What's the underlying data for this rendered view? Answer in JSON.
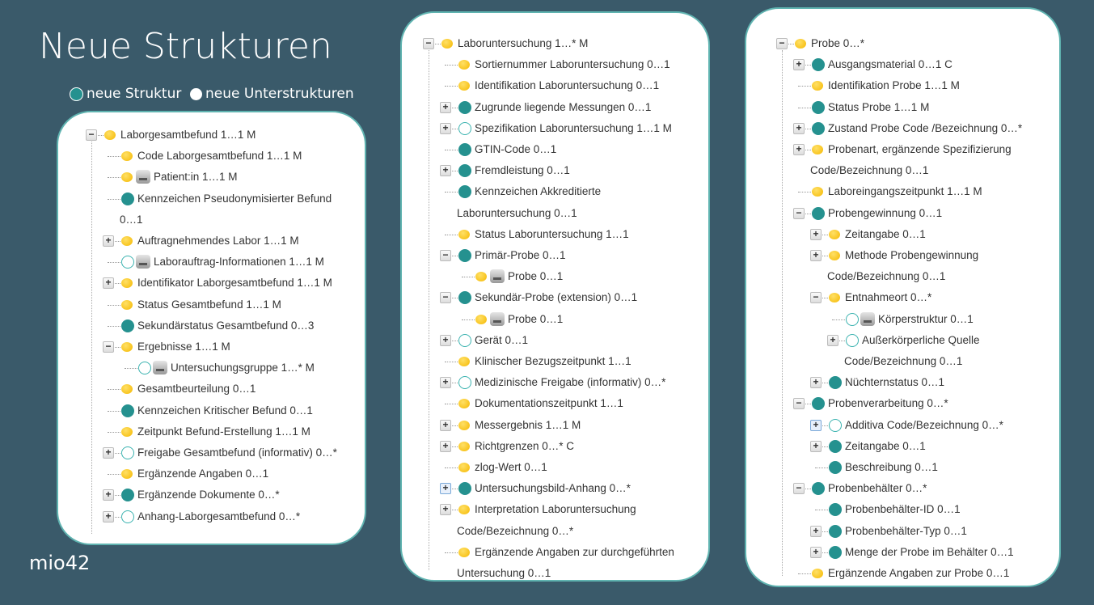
{
  "title": "Neue Strukturen",
  "legend": {
    "new_structure": "neue Struktur",
    "new_substructures": "neue Unterstrukturen"
  },
  "colors": {
    "teal": "#25918f",
    "yellow": "#f5b800",
    "background": "#3a5a6a"
  },
  "logo": "mio42",
  "panels": [
    {
      "name": "laborgesamtbefund-tree",
      "rows": [
        {
          "l": 0,
          "e": "minus",
          "i": "y",
          "t": "Laborgesamtbefund 1…1 M"
        },
        {
          "l": 1,
          "i": "y",
          "t": "Code Laborgesamtbefund 1…1 M"
        },
        {
          "l": 1,
          "i": "y",
          "db": true,
          "t": "Patient:in 1…1 M"
        },
        {
          "l": 1,
          "i": "t",
          "t": "Kennzeichen Pseudonymisierter Befund",
          "t2": "0…1"
        },
        {
          "l": 1,
          "e": "plus",
          "i": "y",
          "t": "Auftragnehmendes Labor 1…1 M"
        },
        {
          "l": 1,
          "i": "h",
          "db": true,
          "t": "Laborauftrag-Informationen 1…1 M"
        },
        {
          "l": 1,
          "e": "plus",
          "i": "y",
          "t": "Identifikator Laborgesamtbefund 1…1 M"
        },
        {
          "l": 1,
          "i": "y",
          "t": "Status Gesamtbefund 1…1 M"
        },
        {
          "l": 1,
          "i": "t",
          "t": "Sekundärstatus Gesamtbefund 0…3"
        },
        {
          "l": 1,
          "e": "minus",
          "i": "y",
          "t": "Ergebnisse 1…1 M"
        },
        {
          "l": 2,
          "i": "h",
          "db": true,
          "t": "Untersuchungsgruppe 1…* M"
        },
        {
          "l": 1,
          "i": "y",
          "t": "Gesamtbeurteilung 0…1"
        },
        {
          "l": 1,
          "i": "t",
          "t": "Kennzeichen Kritischer Befund 0…1"
        },
        {
          "l": 1,
          "i": "y",
          "t": "Zeitpunkt Befund-Erstellung 1…1 M"
        },
        {
          "l": 1,
          "e": "plus",
          "i": "h",
          "t": "Freigabe Gesamtbefund (informativ) 0…*"
        },
        {
          "l": 1,
          "i": "y",
          "t": "Ergänzende Angaben 0…1"
        },
        {
          "l": 1,
          "e": "plus",
          "i": "t",
          "t": "Ergänzende Dokumente 0…*"
        },
        {
          "l": 1,
          "e": "plus",
          "i": "h",
          "t": "Anhang-Laborgesamtbefund 0…*"
        }
      ]
    },
    {
      "name": "laboruntersuchung-tree",
      "rows": [
        {
          "l": 0,
          "e": "minus",
          "i": "y",
          "t": "Laboruntersuchung 1…* M"
        },
        {
          "l": 1,
          "i": "y",
          "t": "Sortiernummer Laboruntersuchung 0…1"
        },
        {
          "l": 1,
          "i": "y",
          "t": "Identifikation Laboruntersuchung 0…1"
        },
        {
          "l": 1,
          "e": "plus",
          "i": "t",
          "t": "Zugrunde liegende Messungen 0…1"
        },
        {
          "l": 1,
          "e": "plus",
          "i": "h",
          "t": "Spezifikation Laboruntersuchung 1…1 M"
        },
        {
          "l": 1,
          "i": "t",
          "t": "GTIN-Code 0…1"
        },
        {
          "l": 1,
          "e": "plus",
          "i": "t",
          "t": "Fremdleistung 0…1"
        },
        {
          "l": 1,
          "i": "t",
          "t": "Kennzeichen Akkreditierte",
          "t2": "Laboruntersuchung 0…1"
        },
        {
          "l": 1,
          "i": "y",
          "t": "Status Laboruntersuchung 1…1"
        },
        {
          "l": 1,
          "e": "minus",
          "i": "t",
          "t": "Primär-Probe 0…1"
        },
        {
          "l": 2,
          "i": "y",
          "db": true,
          "t": "Probe 0…1"
        },
        {
          "l": 1,
          "e": "minus",
          "i": "t",
          "t": "Sekundär-Probe (extension) 0…1"
        },
        {
          "l": 2,
          "i": "y",
          "db": true,
          "t": "Probe 0…1"
        },
        {
          "l": 1,
          "e": "plus",
          "i": "h",
          "t": "Gerät 0…1"
        },
        {
          "l": 1,
          "i": "y",
          "t": "Klinischer Bezugszeitpunkt 1…1"
        },
        {
          "l": 1,
          "e": "plus",
          "i": "h",
          "t": "Medizinische Freigabe (informativ) 0…*"
        },
        {
          "l": 1,
          "i": "y",
          "t": "Dokumentationszeitpunkt 1…1"
        },
        {
          "l": 1,
          "e": "plus",
          "i": "y",
          "t": "Messergebnis 1…1 M"
        },
        {
          "l": 1,
          "e": "plus",
          "i": "y",
          "t": "Richtgrenzen 0…* C"
        },
        {
          "l": 1,
          "i": "y",
          "t": "zlog-Wert 0…1"
        },
        {
          "l": 1,
          "e": "plus-sel",
          "i": "t",
          "t": "Untersuchungsbild-Anhang 0…*"
        },
        {
          "l": 1,
          "e": "plus",
          "i": "y",
          "t": "Interpretation Laboruntersuchung",
          "t2": "Code/Bezeichnung 0…*"
        },
        {
          "l": 1,
          "i": "y",
          "t": "Ergänzende Angaben zur durchgeführten",
          "t2": "Untersuchung 0…1"
        }
      ]
    },
    {
      "name": "probe-tree",
      "rows": [
        {
          "l": 0,
          "e": "minus",
          "i": "y",
          "t": "Probe 0…*"
        },
        {
          "l": 1,
          "e": "plus",
          "i": "t",
          "t": "Ausgangsmaterial 0…1 C"
        },
        {
          "l": 1,
          "i": "y",
          "t": "Identifikation Probe 1…1 M"
        },
        {
          "l": 1,
          "i": "t",
          "t": "Status Probe 1…1 M"
        },
        {
          "l": 1,
          "e": "plus",
          "i": "t",
          "t": "Zustand Probe Code /Bezeichnung 0…*"
        },
        {
          "l": 1,
          "e": "plus",
          "i": "y",
          "t": "Probenart, ergänzende Spezifizierung",
          "t2": "Code/Bezeichnung 0…1"
        },
        {
          "l": 1,
          "i": "y",
          "t": "Laboreingangszeitpunkt 1…1 M"
        },
        {
          "l": 1,
          "e": "minus",
          "i": "t",
          "t": "Probengewinnung 0…1"
        },
        {
          "l": 2,
          "e": "plus",
          "i": "y",
          "t": "Zeitangabe 0…1"
        },
        {
          "l": 2,
          "e": "plus",
          "i": "y",
          "t": "Methode Probengewinnung",
          "t2": "Code/Bezeichnung 0…1"
        },
        {
          "l": 2,
          "e": "minus",
          "i": "y",
          "t": "Entnahmeort 0…*"
        },
        {
          "l": 3,
          "i": "h",
          "db": true,
          "t": "Körperstruktur 0…1"
        },
        {
          "l": 3,
          "e": "plus",
          "i": "h",
          "t": "Außerkörperliche Quelle",
          "t2": "Code/Bezeichnung 0…1"
        },
        {
          "l": 2,
          "e": "plus",
          "i": "t",
          "t": "Nüchternstatus 0…1"
        },
        {
          "l": 1,
          "e": "minus",
          "i": "t",
          "t": "Probenverarbeitung 0…*"
        },
        {
          "l": 2,
          "e": "plus-sel",
          "i": "h",
          "t": "Additiva Code/Bezeichnung 0…*"
        },
        {
          "l": 2,
          "e": "plus",
          "i": "t",
          "t": "Zeitangabe 0…1"
        },
        {
          "l": 2,
          "i": "t",
          "t": "Beschreibung 0…1"
        },
        {
          "l": 1,
          "e": "minus",
          "i": "t",
          "t": "Probenbehälter 0…*"
        },
        {
          "l": 2,
          "i": "t",
          "t": "Probenbehälter-ID 0…1"
        },
        {
          "l": 2,
          "e": "plus",
          "i": "t",
          "t": "Probenbehälter-Typ 0…1"
        },
        {
          "l": 2,
          "e": "plus",
          "i": "t",
          "t": "Menge der Probe im Behälter 0…1"
        },
        {
          "l": 1,
          "i": "y",
          "t": "Ergänzende Angaben zur Probe 0…1"
        }
      ]
    }
  ]
}
